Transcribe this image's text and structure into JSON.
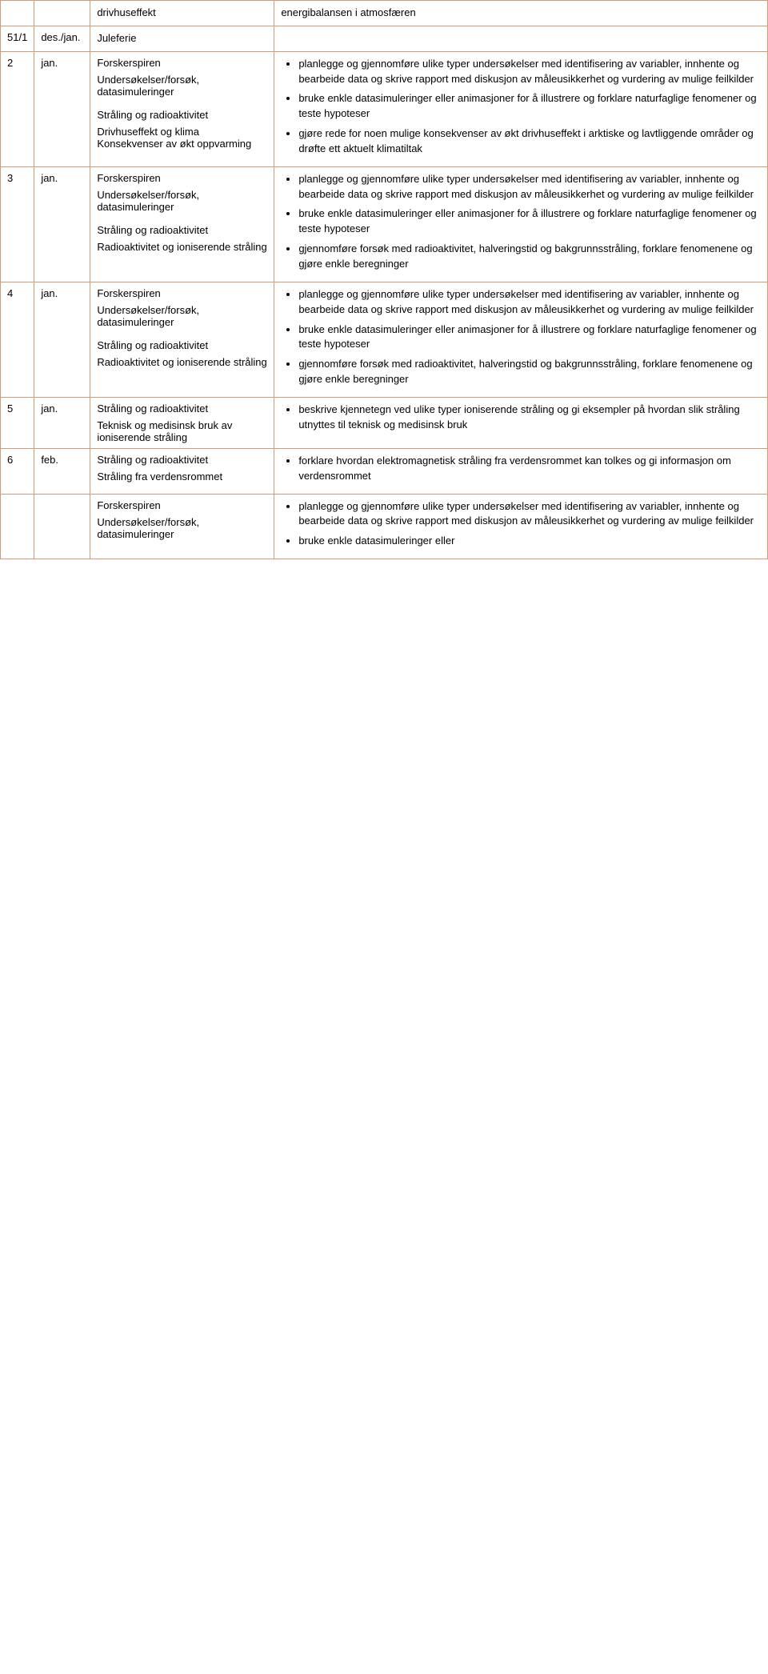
{
  "rows": [
    {
      "week": "",
      "date": "",
      "topic_html": "<span class='single-line'>drivhuseffekt</span>",
      "goals_html": "<span class='single-line'>energibalansen i atmosfæren</span>"
    },
    {
      "week": "51/1",
      "date": "des./jan.",
      "topic_html": "<span class='single-line'>Juleferie</span>",
      "goals_html": ""
    },
    {
      "week": "2",
      "date": "jan.",
      "topic_html": "<div class='topic-block'><span class='topic-title'>Forskerspiren</span>Undersøkelser/forsøk, datasimuleringer</div><div class='topic-block'><span class='topic-title'>Stråling og radioaktivitet</span>Drivhuseffekt og klima Konsekvenser av økt oppvarming</div>",
      "goals_html": "<ul><li>planlegge og gjennomføre ulike typer undersøkelser med identifisering av variabler, innhente og bearbeide data og skrive rapport med diskusjon av måleusikkerhet og vurdering av mulige feilkilder</li><li>bruke enkle datasimuleringer eller animasjoner for å illustrere og forklare naturfaglige fenomener og teste hypoteser</li><li>gjøre rede for noen mulige konsekvenser av økt drivhuseffekt i arktiske og lavtliggende områder og drøfte ett aktuelt klimatiltak</li></ul>"
    },
    {
      "week": "3",
      "date": "jan.",
      "topic_html": "<div class='topic-block'><span class='topic-title'>Forskerspiren</span>Undersøkelser/forsøk, datasimuleringer</div><div class='topic-block'><span class='topic-title'>Stråling og radioaktivitet</span>Radioaktivitet og ioniserende stråling</div>",
      "goals_html": "<ul><li>planlegge og gjennomføre ulike typer undersøkelser med identifisering av variabler, innhente og bearbeide data og skrive rapport med diskusjon av måleusikkerhet og vurdering av mulige feilkilder</li><li>bruke enkle datasimuleringer eller animasjoner for å illustrere og forklare naturfaglige fenomener og teste hypoteser</li><li>gjennomføre forsøk med radioaktivitet, halveringstid og bakgrunnsstråling, forklare fenomenene og gjøre enkle beregninger</li></ul>"
    },
    {
      "week": "4",
      "date": "jan.",
      "topic_html": "<div class='topic-block'><span class='topic-title'>Forskerspiren</span>Undersøkelser/forsøk, datasimuleringer</div><div class='topic-block'><span class='topic-title'>Stråling og radioaktivitet</span>Radioaktivitet og ioniserende stråling</div>",
      "goals_html": "<ul><li>planlegge og gjennomføre ulike typer undersøkelser med identifisering av variabler, innhente og bearbeide data og skrive rapport med diskusjon av måleusikkerhet og vurdering av mulige feilkilder</li><li>bruke enkle datasimuleringer eller animasjoner for å illustrere og forklare naturfaglige fenomener og teste hypoteser</li><li>gjennomføre forsøk med radioaktivitet, halveringstid og bakgrunnsstråling, forklare fenomenene og gjøre enkle beregninger</li></ul>"
    },
    {
      "week": "5",
      "date": "jan.",
      "topic_html": "<div class='topic-block'><span class='topic-title'>Stråling og radioaktivitet</span>Teknisk og medisinsk bruk av ioniserende stråling</div>",
      "goals_html": "<ul><li>beskrive kjennetegn ved ulike typer ioniserende stråling og gi eksempler på hvordan slik stråling utnyttes til teknisk og medisinsk bruk</li></ul>"
    },
    {
      "week": "6",
      "date": "feb.",
      "topic_html": "<div class='topic-block'><span class='topic-title'>Stråling og radioaktivitet</span>Stråling fra verdensrommet</div>",
      "goals_html": "<ul><li>forklare hvordan elektromagnetisk stråling fra verdensrommet kan tolkes og gi informasjon om verdensrommet</li></ul>"
    },
    {
      "week": "",
      "date": "",
      "topic_html": "<div class='topic-block'><span class='topic-title'>Forskerspiren</span>Undersøkelser/forsøk, datasimuleringer</div>",
      "goals_html": "<ul><li>planlegge og gjennomføre ulike typer undersøkelser med identifisering av variabler, innhente og bearbeide data og skrive rapport med diskusjon av måleusikkerhet og vurdering av mulige feilkilder</li><li>bruke enkle datasimuleringer eller</li></ul>"
    }
  ]
}
